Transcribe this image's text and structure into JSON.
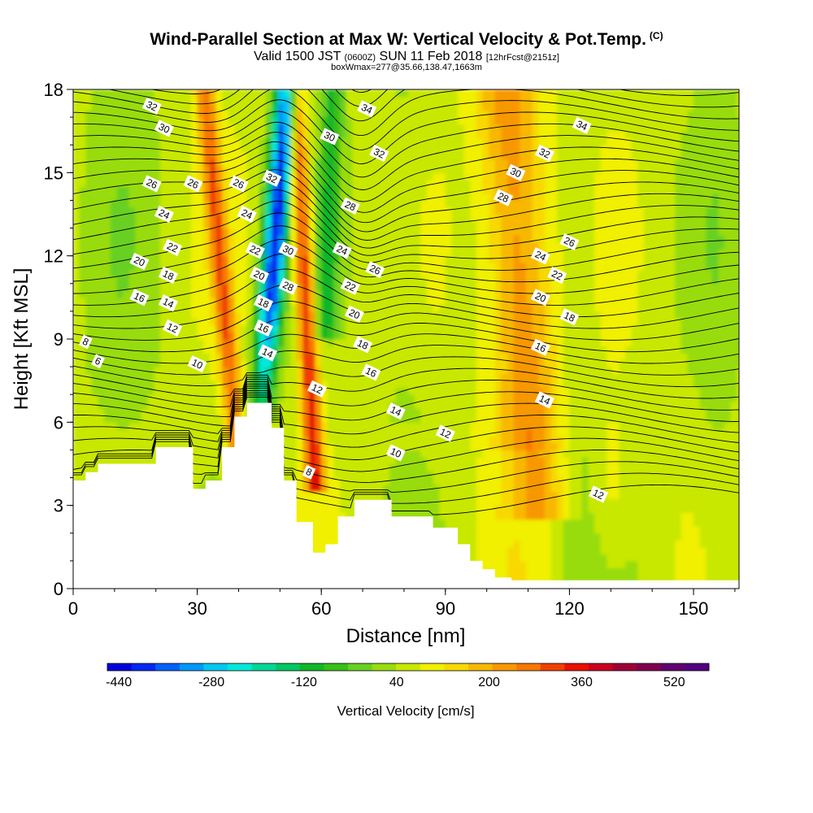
{
  "header": {
    "title": "Wind-Parallel Section at Max W: Vertical Velocity & Pot.Temp.",
    "title_suffix": "(C)",
    "valid_pre": "Valid 1500 JST",
    "valid_utc": "(0600Z)",
    "valid_post": "SUN 11 Feb 2018",
    "valid_fcst": "[12hrFcst@2151z]",
    "box_info": "boxWmax=277@35.66,138.47,1663m"
  },
  "chart_data": {
    "type": "heatmap",
    "xlabel": "Distance [nm]",
    "ylabel": "Height [Kft MSL]",
    "xlim": [
      0,
      161
    ],
    "ylim": [
      0,
      18
    ],
    "x_ticks": [
      0,
      30,
      60,
      90,
      120,
      150
    ],
    "y_ticks": [
      0,
      3,
      6,
      9,
      12,
      15,
      18
    ],
    "colorbar": {
      "label": "Vertical Velocity [cm/s]",
      "min": -460,
      "max": 580,
      "step": 40,
      "tick_values": [
        -440,
        -280,
        -120,
        40,
        200,
        360,
        520
      ],
      "colors": [
        "#0000d8",
        "#0028f0",
        "#0060f8",
        "#0098f8",
        "#00c8f0",
        "#00e8d8",
        "#00d898",
        "#00c860",
        "#10b828",
        "#38c018",
        "#68d020",
        "#98dc10",
        "#c8e800",
        "#f0f000",
        "#f8d800",
        "#f8b800",
        "#f89800",
        "#f87800",
        "#f04000",
        "#e81000",
        "#c80020",
        "#a00038",
        "#800050",
        "#600070",
        "#500080"
      ]
    },
    "vertical_velocity_features": [
      {
        "kind": "downdraft",
        "x": 48,
        "y_bottom": 6.7,
        "y_top": 18,
        "peak": -440
      },
      {
        "kind": "updraft",
        "x": 56,
        "y_bottom": 4.2,
        "y_top": 18,
        "peak": 277
      },
      {
        "kind": "updraft",
        "x": 36,
        "y_bottom": 3.8,
        "y_top": 18,
        "peak": 200
      },
      {
        "kind": "weak_updraft",
        "x": 108,
        "y_bottom": 3,
        "y_top": 18,
        "peak": 120
      }
    ],
    "terrain": [
      [
        0,
        3.9
      ],
      [
        3,
        3.9
      ],
      [
        3,
        4.2
      ],
      [
        6,
        4.2
      ],
      [
        6,
        4.5
      ],
      [
        20,
        4.5
      ],
      [
        20,
        5.1
      ],
      [
        29,
        5.1
      ],
      [
        29,
        3.6
      ],
      [
        32,
        3.6
      ],
      [
        32,
        3.9
      ],
      [
        36,
        3.9
      ],
      [
        36,
        5.1
      ],
      [
        39,
        5.1
      ],
      [
        39,
        6.2
      ],
      [
        42,
        6.2
      ],
      [
        42,
        6.7
      ],
      [
        48,
        6.7
      ],
      [
        48,
        5.8
      ],
      [
        51,
        5.8
      ],
      [
        51,
        3.9
      ],
      [
        54,
        3.9
      ],
      [
        54,
        2.4
      ],
      [
        58,
        2.4
      ],
      [
        58,
        1.3
      ],
      [
        61,
        1.3
      ],
      [
        61,
        1.6
      ],
      [
        64,
        1.6
      ],
      [
        64,
        2.6
      ],
      [
        68,
        2.6
      ],
      [
        68,
        3.2
      ],
      [
        77,
        3.2
      ],
      [
        77,
        2.6
      ],
      [
        87,
        2.6
      ],
      [
        87,
        2.2
      ],
      [
        93,
        2.2
      ],
      [
        93,
        1.6
      ],
      [
        96,
        1.6
      ],
      [
        96,
        1.0
      ],
      [
        99,
        1.0
      ],
      [
        99,
        0.7
      ],
      [
        102,
        0.7
      ],
      [
        102,
        0.4
      ],
      [
        106,
        0.4
      ],
      [
        106,
        0.3
      ],
      [
        161,
        0.3
      ]
    ],
    "potential_temperature_contours": {
      "unit": "C",
      "labels": [
        {
          "v": "32",
          "x": 19,
          "y": 17.4
        },
        {
          "v": "34",
          "x": 71,
          "y": 17.3
        },
        {
          "v": "34",
          "x": 123,
          "y": 16.7
        },
        {
          "v": "30",
          "x": 22,
          "y": 16.6
        },
        {
          "v": "30",
          "x": 62,
          "y": 16.3
        },
        {
          "v": "32",
          "x": 74,
          "y": 15.7
        },
        {
          "v": "32",
          "x": 114,
          "y": 15.7
        },
        {
          "v": "30",
          "x": 107,
          "y": 15.0
        },
        {
          "v": "32",
          "x": 48,
          "y": 14.8
        },
        {
          "v": "26",
          "x": 19,
          "y": 14.6
        },
        {
          "v": "26",
          "x": 29,
          "y": 14.6
        },
        {
          "v": "26",
          "x": 40,
          "y": 14.6
        },
        {
          "v": "28",
          "x": 104,
          "y": 14.1
        },
        {
          "v": "28",
          "x": 67,
          "y": 13.8
        },
        {
          "v": "24",
          "x": 22,
          "y": 13.5
        },
        {
          "v": "24",
          "x": 42,
          "y": 13.5
        },
        {
          "v": "26",
          "x": 120,
          "y": 12.5
        },
        {
          "v": "22",
          "x": 24,
          "y": 12.3
        },
        {
          "v": "22",
          "x": 44,
          "y": 12.2
        },
        {
          "v": "30",
          "x": 52,
          "y": 12.2
        },
        {
          "v": "24",
          "x": 65,
          "y": 12.2
        },
        {
          "v": "24",
          "x": 113,
          "y": 12.0
        },
        {
          "v": "20",
          "x": 16,
          "y": 11.8
        },
        {
          "v": "26",
          "x": 73,
          "y": 11.5
        },
        {
          "v": "22",
          "x": 117,
          "y": 11.3
        },
        {
          "v": "18",
          "x": 23,
          "y": 11.3
        },
        {
          "v": "20",
          "x": 45,
          "y": 11.3
        },
        {
          "v": "28",
          "x": 52,
          "y": 10.9
        },
        {
          "v": "22",
          "x": 67,
          "y": 10.9
        },
        {
          "v": "20",
          "x": 113,
          "y": 10.5
        },
        {
          "v": "16",
          "x": 16,
          "y": 10.5
        },
        {
          "v": "18",
          "x": 46,
          "y": 10.3
        },
        {
          "v": "14",
          "x": 23,
          "y": 10.3
        },
        {
          "v": "20",
          "x": 68,
          "y": 9.9
        },
        {
          "v": "18",
          "x": 120,
          "y": 9.8
        },
        {
          "v": "16",
          "x": 46,
          "y": 9.4
        },
        {
          "v": "12",
          "x": 24,
          "y": 9.4
        },
        {
          "v": "8",
          "x": 3,
          "y": 8.9
        },
        {
          "v": "18",
          "x": 70,
          "y": 8.8
        },
        {
          "v": "16",
          "x": 113,
          "y": 8.7
        },
        {
          "v": "14",
          "x": 47,
          "y": 8.5
        },
        {
          "v": "6",
          "x": 6,
          "y": 8.2
        },
        {
          "v": "10",
          "x": 30,
          "y": 8.1
        },
        {
          "v": "16",
          "x": 72,
          "y": 7.8
        },
        {
          "v": "12",
          "x": 59,
          "y": 7.2
        },
        {
          "v": "14",
          "x": 114,
          "y": 6.8
        },
        {
          "v": "14",
          "x": 78,
          "y": 6.4
        },
        {
          "v": "12",
          "x": 90,
          "y": 5.6
        },
        {
          "v": "10",
          "x": 78,
          "y": 4.9
        },
        {
          "v": "8",
          "x": 57,
          "y": 4.2
        },
        {
          "v": "12",
          "x": 127,
          "y": 3.4
        }
      ]
    }
  }
}
